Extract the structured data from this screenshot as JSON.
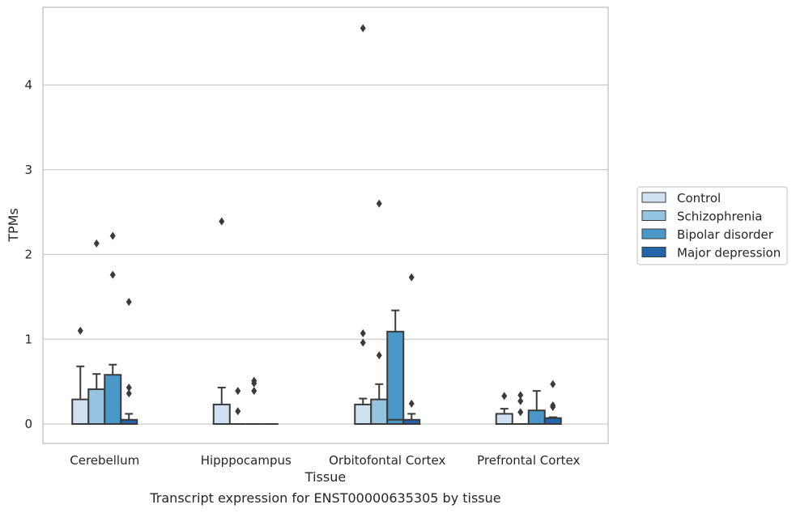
{
  "chart_data": {
    "type": "box",
    "xlabel": "Tissue",
    "ylabel": "TPMs",
    "caption": "Transcript expression for ENST00000635305 by tissue",
    "ylim": [
      -0.22,
      4.9
    ],
    "yticks": [
      0,
      1,
      2,
      3,
      4
    ],
    "grid": "horizontal",
    "legend_position": "right",
    "categories": [
      "Cerebellum",
      "Hipppocampus",
      "Orbitofontal Cortex",
      "Prefrontal Cortex"
    ],
    "series": [
      {
        "name": "Control",
        "color": "#d0e1f2",
        "boxes": [
          {
            "q1": 0,
            "median": 0,
            "q3": 0.29,
            "whisker_low": 0,
            "whisker_high": 0.68,
            "outliers": [
              1.1
            ]
          },
          {
            "q1": 0,
            "median": 0,
            "q3": 0.23,
            "whisker_low": 0,
            "whisker_high": 0.43,
            "outliers": [
              2.39
            ]
          },
          {
            "q1": 0,
            "median": 0,
            "q3": 0.23,
            "whisker_low": 0,
            "whisker_high": 0.3,
            "outliers": [
              0.96,
              1.07,
              4.67
            ]
          },
          {
            "q1": 0,
            "median": 0,
            "q3": 0.12,
            "whisker_low": 0,
            "whisker_high": 0.18,
            "outliers": [
              0.33
            ]
          }
        ]
      },
      {
        "name": "Schizophrenia",
        "color": "#94c4df",
        "boxes": [
          {
            "q1": 0,
            "median": 0,
            "q3": 0.41,
            "whisker_low": 0,
            "whisker_high": 0.59,
            "outliers": [
              2.13
            ]
          },
          {
            "q1": 0,
            "median": 0,
            "q3": 0,
            "whisker_low": 0,
            "whisker_high": 0,
            "outliers": [
              0.15,
              0.39
            ]
          },
          {
            "q1": 0,
            "median": 0,
            "q3": 0.29,
            "whisker_low": 0,
            "whisker_high": 0.47,
            "outliers": [
              0.81,
              2.6
            ]
          },
          {
            "q1": 0,
            "median": 0,
            "q3": 0,
            "whisker_low": 0,
            "whisker_high": 0,
            "outliers": [
              0.14,
              0.27,
              0.34
            ]
          }
        ]
      },
      {
        "name": "Bipolar disorder",
        "color": "#4a98c9",
        "boxes": [
          {
            "q1": 0,
            "median": 0,
            "q3": 0.58,
            "whisker_low": 0,
            "whisker_high": 0.7,
            "outliers": [
              1.76,
              2.22
            ]
          },
          {
            "q1": 0,
            "median": 0,
            "q3": 0,
            "whisker_low": 0,
            "whisker_high": 0,
            "outliers": [
              0.39,
              0.48,
              0.51
            ]
          },
          {
            "q1": 0,
            "median": 0.05,
            "q3": 1.09,
            "whisker_low": 0,
            "whisker_high": 1.34,
            "outliers": []
          },
          {
            "q1": 0,
            "median": 0,
            "q3": 0.16,
            "whisker_low": 0,
            "whisker_high": 0.39,
            "outliers": []
          }
        ]
      },
      {
        "name": "Major depression",
        "color": "#2464ab",
        "boxes": [
          {
            "q1": 0,
            "median": 0,
            "q3": 0.05,
            "whisker_low": 0,
            "whisker_high": 0.12,
            "outliers": [
              0.36,
              0.43,
              1.44
            ]
          },
          {
            "q1": 0,
            "median": 0,
            "q3": 0,
            "whisker_low": 0,
            "whisker_high": 0,
            "outliers": []
          },
          {
            "q1": 0,
            "median": 0,
            "q3": 0.05,
            "whisker_low": 0,
            "whisker_high": 0.12,
            "outliers": [
              0.24,
              1.73
            ]
          },
          {
            "q1": 0,
            "median": 0,
            "q3": 0.07,
            "whisker_low": 0,
            "whisker_high": 0.08,
            "outliers": [
              0.2,
              0.22,
              0.47
            ]
          }
        ]
      }
    ]
  },
  "style": {
    "line_color": "#3a3a3a",
    "grid_color": "#cccccc",
    "frame_color": "#c8c8c8",
    "legend_border_color": "#cccccc",
    "text_color": "#262626"
  }
}
